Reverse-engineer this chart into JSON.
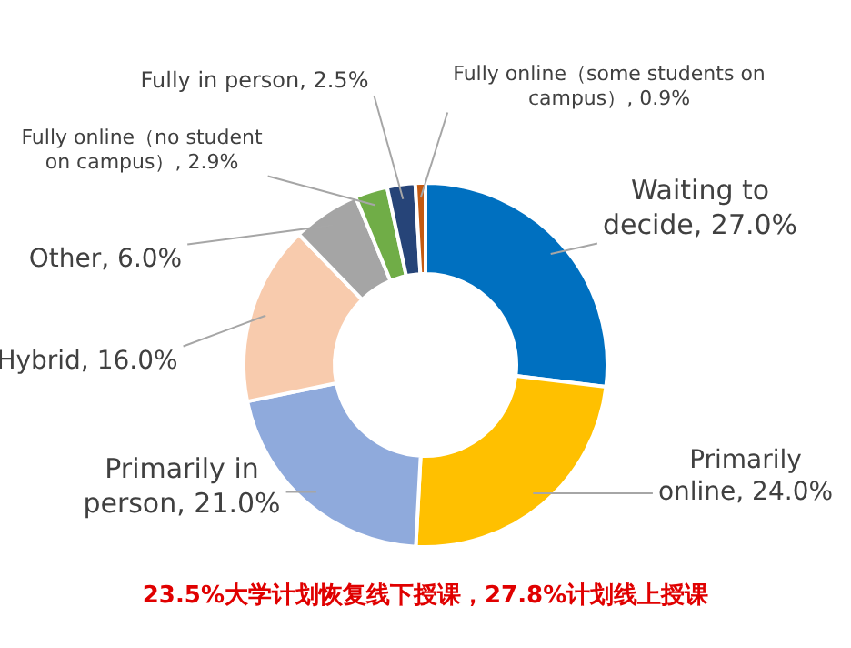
{
  "chart_data": {
    "type": "donut",
    "categories": [
      "Waiting to decide",
      "Primarily online",
      "Primarily in person",
      "Hybrid",
      "Other",
      "Fully online（no student on campus）",
      "Fully in person",
      "Fully online（some students on campus）"
    ],
    "values": [
      27.0,
      24.0,
      21.0,
      16.0,
      6.0,
      2.9,
      2.5,
      0.9
    ],
    "value_labels": [
      "27.0%",
      "24.0%",
      "21.0%",
      "16.0%",
      "6.0%",
      "2.9%",
      "2.5%",
      "0.9%"
    ],
    "colors": [
      "#0070c0",
      "#ffc000",
      "#8faadc",
      "#f8cbad",
      "#a5a5a5",
      "#70ad47",
      "#264478",
      "#c55a11"
    ],
    "legend": false,
    "annotations": [
      "23.5%大学计划恢复线下授课，27.8%计划线上授课"
    ]
  }
}
